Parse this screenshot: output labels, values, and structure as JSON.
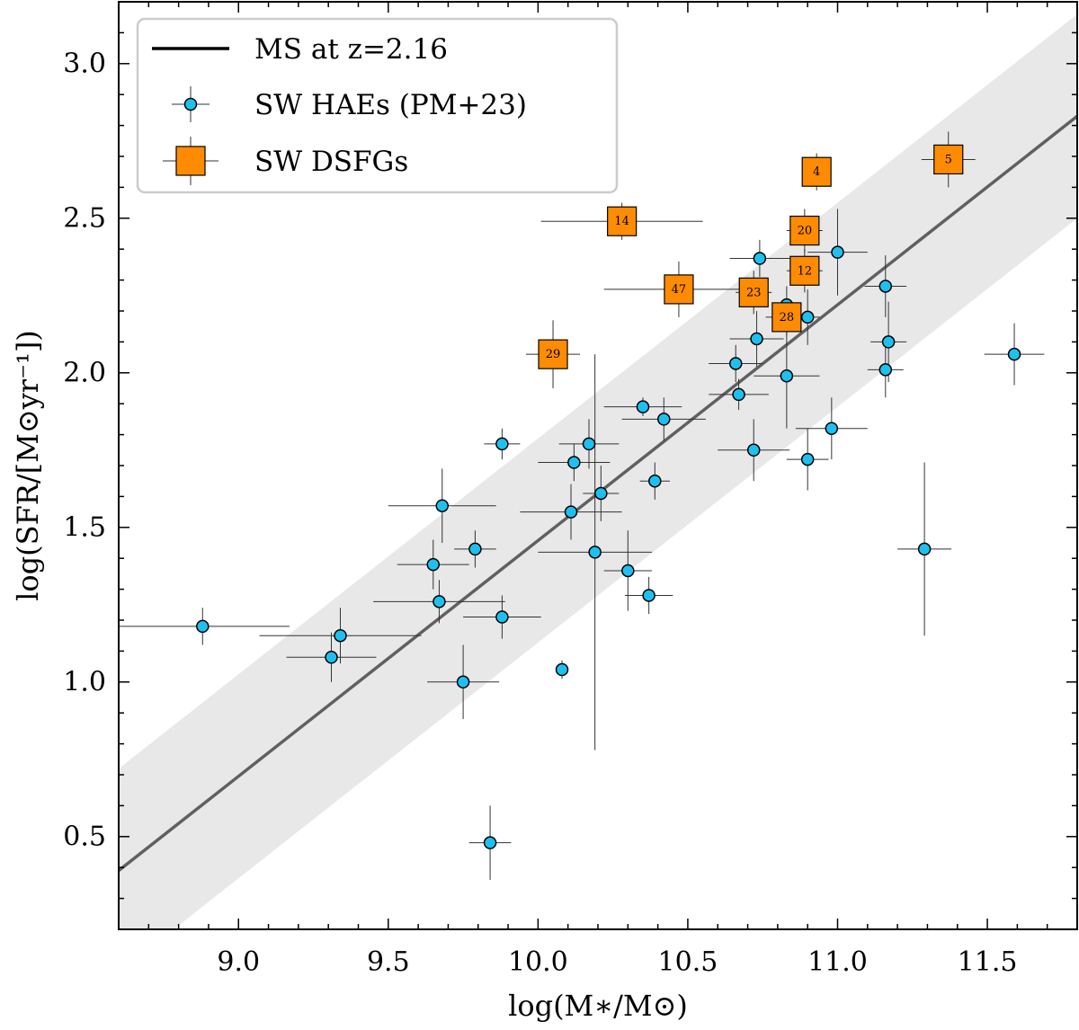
{
  "chart_data": {
    "type": "scatter",
    "xlabel": "log(M∗/M⊙)",
    "ylabel": "log(SFR/[M⊙yr⁻¹])",
    "xlim": [
      8.6,
      11.8
    ],
    "ylim": [
      0.2,
      3.2
    ],
    "xticks": [
      9.0,
      9.5,
      10.0,
      10.5,
      11.0,
      11.5
    ],
    "xtick_labels": [
      "9.0",
      "9.5",
      "10.0",
      "10.5",
      "11.0",
      "11.5"
    ],
    "yticks": [
      0.5,
      1.0,
      1.5,
      2.0,
      2.5,
      3.0
    ],
    "ytick_labels": [
      "0.5",
      "1.0",
      "1.5",
      "2.0",
      "2.5",
      "3.0"
    ],
    "legend": {
      "position": "top-left",
      "entries": [
        "MS at z=2.16",
        "SW HAEs (PM+23)",
        "SW DSFGs"
      ]
    },
    "main_sequence": {
      "name": "MS at z=2.16",
      "x": [
        8.6,
        11.8
      ],
      "y": [
        0.39,
        2.83
      ],
      "band_halfwidth": 0.33,
      "color": "#606060",
      "band_color": "#e8e8e8"
    },
    "series": [
      {
        "name": "SW HAEs (PM+23)",
        "marker": "circle",
        "color": "#1ec0f0",
        "points": [
          {
            "x": 8.88,
            "y": 1.18,
            "xerr": 0.29,
            "yerr": 0.06
          },
          {
            "x": 9.31,
            "y": 1.08,
            "xerr": 0.15,
            "yerr": 0.08
          },
          {
            "x": 9.34,
            "y": 1.15,
            "xerr": 0.27,
            "yerr": 0.09
          },
          {
            "x": 9.65,
            "y": 1.38,
            "xerr": 0.12,
            "yerr": 0.08
          },
          {
            "x": 9.67,
            "y": 1.26,
            "xerr": 0.22,
            "yerr": 0.07
          },
          {
            "x": 9.68,
            "y": 1.57,
            "xerr": 0.18,
            "yerr": 0.12
          },
          {
            "x": 9.79,
            "y": 1.43,
            "xerr": 0.07,
            "yerr": 0.06
          },
          {
            "x": 9.75,
            "y": 1.0,
            "xerr": 0.12,
            "yerr": 0.12
          },
          {
            "x": 9.84,
            "y": 0.48,
            "xerr": 0.07,
            "yerr": 0.12
          },
          {
            "x": 9.88,
            "y": 1.77,
            "xerr": 0.06,
            "yerr": 0.05
          },
          {
            "x": 9.88,
            "y": 1.21,
            "xerr": 0.13,
            "yerr": 0.07
          },
          {
            "x": 10.08,
            "y": 1.04,
            "xerr": 0.02,
            "yerr": 0.03
          },
          {
            "x": 10.11,
            "y": 1.55,
            "xerr": 0.17,
            "yerr": 0.09
          },
          {
            "x": 10.12,
            "y": 1.71,
            "xerr": 0.12,
            "yerr": 0.06
          },
          {
            "x": 10.17,
            "y": 1.77,
            "xerr": 0.1,
            "yerr": 0.08
          },
          {
            "x": 10.19,
            "y": 1.42,
            "xerr": 0.19,
            "yerr": 0.64
          },
          {
            "x": 10.21,
            "y": 1.61,
            "xerr": 0.06,
            "yerr": 0.09
          },
          {
            "x": 10.3,
            "y": 1.36,
            "xerr": 0.08,
            "yerr": 0.13
          },
          {
            "x": 10.35,
            "y": 1.89,
            "xerr": 0.13,
            "yerr": 0.03
          },
          {
            "x": 10.37,
            "y": 1.28,
            "xerr": 0.08,
            "yerr": 0.06
          },
          {
            "x": 10.39,
            "y": 1.65,
            "xerr": 0.05,
            "yerr": 0.06
          },
          {
            "x": 10.42,
            "y": 1.85,
            "xerr": 0.14,
            "yerr": 0.07
          },
          {
            "x": 10.66,
            "y": 2.03,
            "xerr": 0.09,
            "yerr": 0.06
          },
          {
            "x": 10.67,
            "y": 1.93,
            "xerr": 0.1,
            "yerr": 0.05
          },
          {
            "x": 10.72,
            "y": 1.75,
            "xerr": 0.12,
            "yerr": 0.1
          },
          {
            "x": 10.73,
            "y": 2.11,
            "xerr": 0.09,
            "yerr": 0.09
          },
          {
            "x": 10.74,
            "y": 2.37,
            "xerr": 0.1,
            "yerr": 0.06
          },
          {
            "x": 10.83,
            "y": 2.22,
            "xerr": 0.05,
            "yerr": 0.06
          },
          {
            "x": 10.83,
            "y": 1.99,
            "xerr": 0.11,
            "yerr": 0.17
          },
          {
            "x": 10.9,
            "y": 2.18,
            "xerr": 0.04,
            "yerr": 0.09
          },
          {
            "x": 10.9,
            "y": 1.72,
            "xerr": 0.07,
            "yerr": 0.1
          },
          {
            "x": 10.98,
            "y": 1.82,
            "xerr": 0.12,
            "yerr": 0.1
          },
          {
            "x": 11.0,
            "y": 2.39,
            "xerr": 0.1,
            "yerr": 0.14
          },
          {
            "x": 11.16,
            "y": 2.28,
            "xerr": 0.07,
            "yerr": 0.1
          },
          {
            "x": 11.17,
            "y": 2.1,
            "xerr": 0.06,
            "yerr": 0.13
          },
          {
            "x": 11.16,
            "y": 2.01,
            "xerr": 0.06,
            "yerr": 0.09
          },
          {
            "x": 11.29,
            "y": 1.43,
            "xerr": 0.09,
            "yerr": 0.28
          },
          {
            "x": 11.59,
            "y": 2.06,
            "xerr": 0.1,
            "yerr": 0.1
          }
        ]
      },
      {
        "name": "SW DSFGs",
        "marker": "square",
        "color": "#ff8c00",
        "points": [
          {
            "label": "4",
            "x": 10.93,
            "y": 2.65,
            "xerr": 0.04,
            "yerr": 0.06
          },
          {
            "label": "5",
            "x": 11.37,
            "y": 2.69,
            "xerr": 0.09,
            "yerr": 0.09
          },
          {
            "label": "14",
            "x": 10.28,
            "y": 2.49,
            "xerr": 0.27,
            "yerr": 0.06
          },
          {
            "label": "20",
            "x": 10.89,
            "y": 2.46,
            "xerr": 0.06,
            "yerr": 0.07
          },
          {
            "label": "12",
            "x": 10.89,
            "y": 2.33,
            "xerr": 0.06,
            "yerr": 0.07
          },
          {
            "label": "47",
            "x": 10.47,
            "y": 2.27,
            "xerr": 0.25,
            "yerr": 0.09
          },
          {
            "label": "23",
            "x": 10.72,
            "y": 2.26,
            "xerr": 0.06,
            "yerr": 0.07
          },
          {
            "label": "28",
            "x": 10.83,
            "y": 2.18,
            "xerr": 0.07,
            "yerr": 0.06
          },
          {
            "label": "29",
            "x": 10.05,
            "y": 2.06,
            "xerr": 0.09,
            "yerr": 0.11
          }
        ]
      }
    ]
  }
}
